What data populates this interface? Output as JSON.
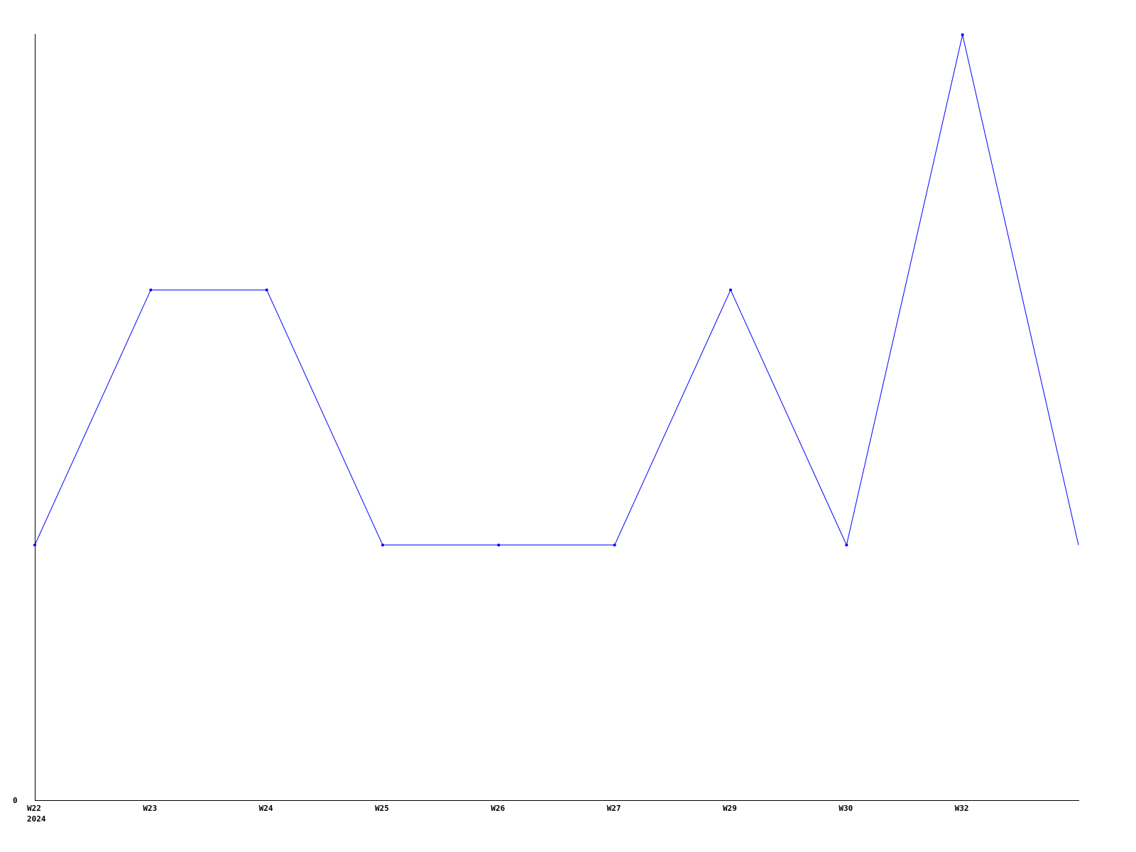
{
  "chart_data": {
    "type": "line",
    "categories": [
      "W22",
      "W23",
      "W24",
      "W25",
      "W26",
      "W27",
      "W29",
      "W30",
      "W32",
      ""
    ],
    "x_sublabel": "2024",
    "series": [
      {
        "values": [
          1,
          2,
          2,
          1,
          1,
          1,
          2,
          1,
          3,
          1
        ],
        "color": "#0000ff"
      }
    ],
    "y_tick_labels": [
      "0"
    ],
    "ylim": [
      0,
      3
    ],
    "title": "",
    "xlabel": "",
    "ylabel": "",
    "grid": false,
    "legend": "none",
    "axis_color": "#000000"
  }
}
